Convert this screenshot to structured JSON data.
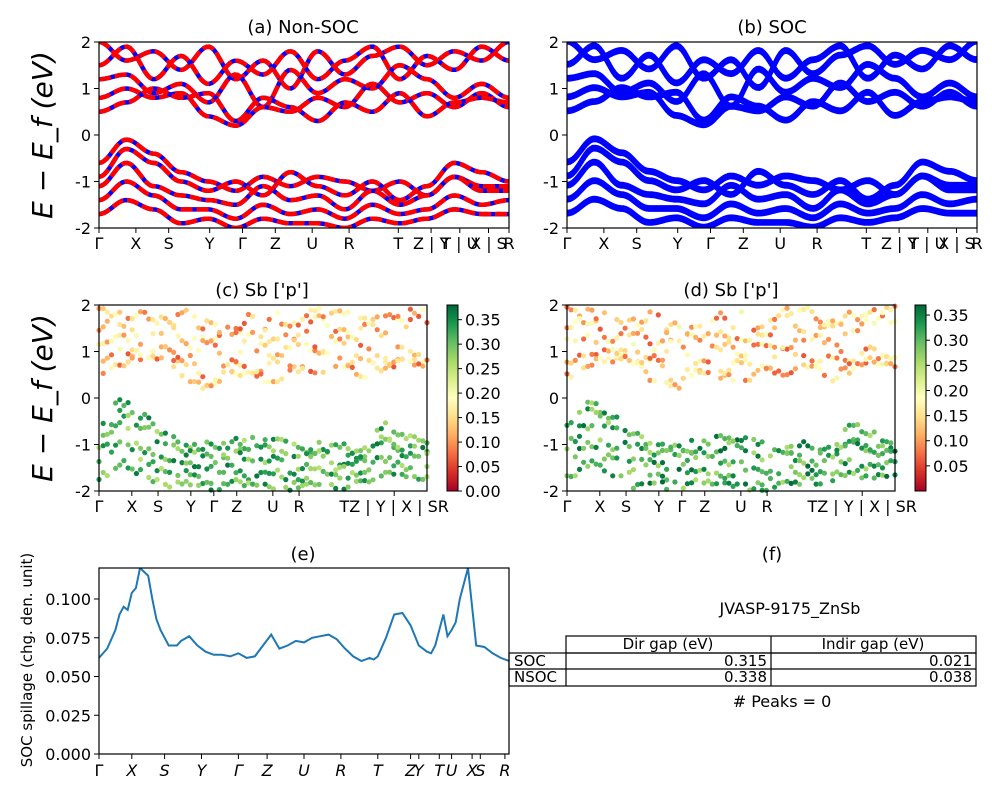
{
  "figure": {
    "material_id": "JVASP-9175_ZnSb",
    "peaks_text": "# Peaks = 0"
  },
  "kpath_labels": [
    "Γ",
    "X",
    "S",
    "Y",
    "Γ",
    "Z",
    "U",
    "R",
    "T",
    "Z|Y",
    "T|U",
    "X|S",
    "R"
  ],
  "chart_data": [
    {
      "id": "a",
      "type": "line",
      "title": "(a) Non-SOC",
      "ylabel": "E − E_f (eV)",
      "ylim": [
        -2,
        2
      ],
      "yticks": [
        2,
        1,
        0,
        -1,
        -2
      ],
      "xtick_labels": [
        "Γ",
        "X",
        "S",
        "Y",
        "Γ",
        "Z",
        "U",
        "R",
        "T",
        "Z | Y",
        "T | U",
        "X | S",
        "R"
      ],
      "colors": {
        "spin_up": "#0000ff",
        "spin_down": "#ff0000"
      },
      "note": "dense set of band lines; blue solid with red dashed overlay",
      "bands": [
        {
          "y": [
            2.0,
            1.6,
            1.8,
            1.4,
            1.9,
            1.2,
            1.6,
            1.0,
            1.8,
            1.3,
            1.7,
            1.9,
            1.5,
            1.8,
            1.6,
            2.0
          ]
        },
        {
          "y": [
            1.5,
            1.9,
            1.2,
            1.7,
            1.1,
            1.6,
            1.3,
            1.8,
            1.2,
            1.6,
            1.9,
            1.2,
            1.7,
            1.4,
            1.9,
            1.6
          ]
        },
        {
          "y": [
            1.2,
            1.3,
            0.9,
            1.1,
            0.7,
            1.3,
            0.6,
            1.4,
            0.9,
            1.2,
            1.0,
            1.5,
            1.2,
            0.8,
            1.1,
            0.8
          ]
        },
        {
          "y": [
            0.8,
            1.0,
            0.8,
            0.9,
            0.4,
            0.2,
            0.6,
            0.5,
            0.8,
            0.6,
            1.1,
            0.7,
            0.9,
            0.6,
            0.9,
            0.6
          ]
        },
        {
          "y": [
            0.5,
            0.7,
            1.0,
            0.8,
            0.9,
            0.3,
            0.8,
            0.6,
            0.3,
            0.7,
            0.5,
            0.9,
            0.4,
            0.7,
            0.8,
            0.7
          ]
        },
        {
          "y": [
            -0.6,
            -0.1,
            -0.4,
            -0.8,
            -1.0,
            -1.2,
            -0.9,
            -1.1,
            -0.9,
            -1.0,
            -1.2,
            -1.0,
            -1.3,
            -0.9,
            -1.1,
            -1.1
          ]
        },
        {
          "y": [
            -0.9,
            -0.3,
            -0.6,
            -1.0,
            -1.2,
            -1.0,
            -1.3,
            -0.8,
            -1.1,
            -1.3,
            -1.0,
            -1.4,
            -1.1,
            -0.6,
            -0.8,
            -1.0
          ]
        },
        {
          "y": [
            -1.1,
            -0.6,
            -1.1,
            -1.3,
            -1.4,
            -1.5,
            -1.1,
            -1.4,
            -1.3,
            -1.6,
            -1.2,
            -1.5,
            -1.3,
            -0.9,
            -1.2,
            -1.2
          ]
        },
        {
          "y": [
            -1.4,
            -1.0,
            -1.3,
            -1.6,
            -1.6,
            -1.8,
            -1.5,
            -1.7,
            -1.6,
            -1.8,
            -1.5,
            -1.7,
            -1.6,
            -1.3,
            -1.5,
            -1.4
          ]
        },
        {
          "y": [
            -1.7,
            -1.4,
            -1.6,
            -1.9,
            -1.8,
            -2.0,
            -1.8,
            -1.9,
            -1.9,
            -2.0,
            -1.8,
            -1.9,
            -1.8,
            -1.6,
            -1.7,
            -1.7
          ]
        }
      ]
    },
    {
      "id": "b",
      "type": "line",
      "title": "(b) SOC",
      "ylim": [
        -2,
        2
      ],
      "yticks": [
        2,
        1,
        0,
        -1,
        -2
      ],
      "xtick_labels": [
        "Γ",
        "X",
        "S",
        "Y",
        "Γ",
        "Z",
        "U",
        "R",
        "T",
        "Z | Y",
        "T | U",
        "X | S",
        "R"
      ],
      "colors": {
        "band": "#0000ff"
      },
      "bands": [
        {
          "y": [
            2.0,
            1.6,
            1.8,
            1.4,
            1.9,
            1.2,
            1.6,
            1.0,
            1.8,
            1.3,
            1.7,
            1.9,
            1.5,
            1.8,
            1.6,
            2.0
          ]
        },
        {
          "y": [
            1.5,
            1.9,
            1.2,
            1.7,
            1.1,
            1.6,
            1.3,
            1.8,
            1.2,
            1.6,
            1.9,
            1.2,
            1.7,
            1.4,
            1.9,
            1.6
          ]
        },
        {
          "y": [
            1.2,
            1.3,
            0.9,
            1.1,
            0.7,
            1.3,
            0.6,
            1.4,
            0.9,
            1.2,
            1.0,
            1.5,
            1.2,
            0.8,
            1.1,
            0.8
          ]
        },
        {
          "y": [
            0.8,
            1.0,
            0.8,
            0.9,
            0.4,
            0.2,
            0.6,
            0.5,
            0.8,
            0.6,
            1.1,
            0.7,
            0.9,
            0.6,
            0.9,
            0.6
          ]
        },
        {
          "y": [
            0.5,
            0.7,
            1.0,
            0.8,
            0.9,
            0.3,
            0.8,
            0.6,
            0.3,
            0.7,
            0.5,
            0.9,
            0.4,
            0.7,
            0.8,
            0.7
          ]
        },
        {
          "y": [
            -0.6,
            -0.1,
            -0.4,
            -0.8,
            -1.0,
            -1.2,
            -0.9,
            -1.1,
            -0.9,
            -1.0,
            -1.2,
            -1.0,
            -1.3,
            -0.9,
            -1.1,
            -1.1
          ]
        },
        {
          "y": [
            -0.9,
            -0.3,
            -0.6,
            -1.0,
            -1.2,
            -1.0,
            -1.3,
            -0.8,
            -1.1,
            -1.3,
            -1.0,
            -1.4,
            -1.1,
            -0.6,
            -0.8,
            -1.0
          ]
        },
        {
          "y": [
            -1.1,
            -0.6,
            -1.1,
            -1.3,
            -1.4,
            -1.5,
            -1.1,
            -1.4,
            -1.3,
            -1.6,
            -1.2,
            -1.5,
            -1.3,
            -0.9,
            -1.2,
            -1.2
          ]
        },
        {
          "y": [
            -1.4,
            -1.0,
            -1.3,
            -1.6,
            -1.6,
            -1.8,
            -1.5,
            -1.7,
            -1.6,
            -1.8,
            -1.5,
            -1.7,
            -1.6,
            -1.3,
            -1.5,
            -1.4
          ]
        },
        {
          "y": [
            -1.7,
            -1.4,
            -1.6,
            -1.9,
            -1.8,
            -2.0,
            -1.8,
            -1.9,
            -1.9,
            -2.0,
            -1.8,
            -1.9,
            -1.8,
            -1.6,
            -1.7,
            -1.7
          ]
        }
      ]
    },
    {
      "id": "c",
      "type": "scatter",
      "title": "(c)  Sb ['p']",
      "ylabel": "E − E_f (eV)",
      "ylim": [
        -2,
        2
      ],
      "yticks": [
        2,
        1,
        0,
        -1,
        -2
      ],
      "xtick_labels": [
        "Γ",
        "X",
        "S",
        "Y",
        "Γ",
        "Z",
        "U",
        "R",
        "TZ | Y | X | SR"
      ],
      "colormap": "RdYlGn",
      "colorbar": {
        "min": 0.0,
        "max": 0.38,
        "ticks": [
          "0.35",
          "0.30",
          "0.25",
          "0.20",
          "0.15",
          "0.10",
          "0.05",
          "0.00"
        ],
        "tick_values": [
          0.35,
          0.3,
          0.25,
          0.2,
          0.15,
          0.1,
          0.05,
          0.0
        ]
      },
      "note": "conduction states ~0.05–0.20 weight (red/yellow), valence states ~0.25–0.38 (green)"
    },
    {
      "id": "d",
      "type": "scatter",
      "title": "(d) Sb ['p']",
      "ylim": [
        -2,
        2
      ],
      "yticks": [
        2,
        1,
        0,
        -1,
        -2
      ],
      "xtick_labels": [
        "Γ",
        "X",
        "S",
        "Y",
        "Γ",
        "Z",
        "U",
        "R",
        "TZ | Y | X | SR"
      ],
      "colormap": "RdYlGn",
      "colorbar": {
        "min": 0.0,
        "max": 0.37,
        "ticks": [
          "0.35",
          "0.30",
          "0.25",
          "0.20",
          "0.15",
          "0.10",
          "0.05"
        ],
        "tick_values": [
          0.35,
          0.3,
          0.25,
          0.2,
          0.15,
          0.1,
          0.05
        ]
      }
    },
    {
      "id": "e",
      "type": "line",
      "title": "(e)",
      "ylabel": "SOC spillage (chg. den. unit)",
      "ylim": [
        0,
        0.12
      ],
      "yticks": [
        "0.000",
        "0.025",
        "0.050",
        "0.075",
        "0.100"
      ],
      "ytick_values": [
        0,
        0.025,
        0.05,
        0.075,
        0.1
      ],
      "xtick_labels": [
        "Γ",
        "X",
        "S",
        "Y",
        "Γ",
        "Z",
        "U",
        "R",
        "T",
        "Z",
        "Y",
        "T",
        "U",
        "X",
        "S",
        "R"
      ],
      "color": "#1f77b4",
      "x": [
        0,
        0.02,
        0.04,
        0.05,
        0.06,
        0.07,
        0.08,
        0.09,
        0.1,
        0.12,
        0.13,
        0.14,
        0.15,
        0.17,
        0.19,
        0.2,
        0.22,
        0.24,
        0.26,
        0.28,
        0.3,
        0.32,
        0.34,
        0.36,
        0.38,
        0.4,
        0.42,
        0.44,
        0.46,
        0.48,
        0.5,
        0.52,
        0.54,
        0.56,
        0.58,
        0.6,
        0.62,
        0.64,
        0.66,
        0.67,
        0.68,
        0.7,
        0.72,
        0.74,
        0.76,
        0.78,
        0.8,
        0.81,
        0.82,
        0.83,
        0.84,
        0.85,
        0.86,
        0.87,
        0.88,
        0.9,
        0.92,
        0.94,
        0.96,
        0.98,
        1.0
      ],
      "y": [
        0.062,
        0.068,
        0.08,
        0.09,
        0.095,
        0.093,
        0.104,
        0.107,
        0.12,
        0.115,
        0.1,
        0.087,
        0.08,
        0.07,
        0.07,
        0.073,
        0.076,
        0.07,
        0.066,
        0.064,
        0.064,
        0.063,
        0.065,
        0.062,
        0.063,
        0.07,
        0.077,
        0.068,
        0.07,
        0.073,
        0.072,
        0.075,
        0.076,
        0.077,
        0.074,
        0.068,
        0.063,
        0.06,
        0.062,
        0.061,
        0.063,
        0.075,
        0.09,
        0.091,
        0.083,
        0.07,
        0.066,
        0.065,
        0.07,
        0.08,
        0.09,
        0.076,
        0.08,
        0.085,
        0.1,
        0.12,
        0.07,
        0.069,
        0.065,
        0.062,
        0.06
      ]
    },
    {
      "id": "f",
      "type": "table",
      "title": "(f)",
      "columns": [
        "Dir gap (eV)",
        "Indir gap (eV)"
      ],
      "rows": [
        {
          "label": "SOC",
          "values": [
            "0.315",
            "0.021"
          ]
        },
        {
          "label": "NSOC",
          "values": [
            "0.338",
            "0.038"
          ]
        }
      ]
    }
  ]
}
